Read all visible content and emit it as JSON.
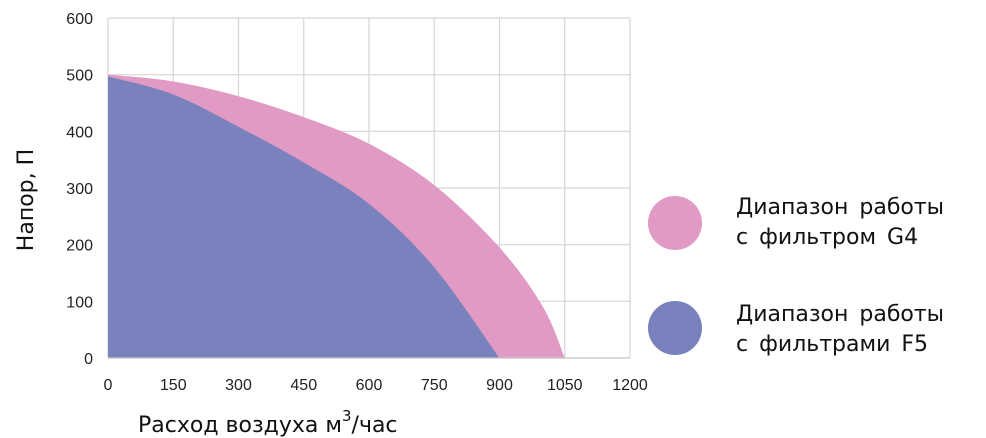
{
  "chart_data": {
    "type": "area",
    "xlabel": "Расход воздуха м",
    "xlabel_sup": "3",
    "xlabel_suffix": "/час",
    "ylabel": "Напор, П",
    "xlim": [
      0,
      1200
    ],
    "ylim": [
      0,
      600
    ],
    "x_ticks": [
      0,
      150,
      300,
      450,
      600,
      750,
      900,
      1050,
      1200
    ],
    "y_ticks": [
      0,
      100,
      200,
      300,
      400,
      500,
      600
    ],
    "grid": true,
    "legend_position": "right",
    "series": [
      {
        "name_line1": "Диапазон работы",
        "name_line2": "с фильтром G4",
        "color": "#e09ac3",
        "x": [
          0,
          150,
          300,
          450,
          600,
          750,
          900,
          1000,
          1050
        ],
        "y": [
          500,
          488,
          462,
          425,
          378,
          305,
          195,
          90,
          0
        ]
      },
      {
        "name_line1": "Диапазон работы",
        "name_line2": "с фильтрами F5",
        "color": "#7a82bd",
        "x": [
          0,
          150,
          300,
          450,
          600,
          750,
          900
        ],
        "y": [
          497,
          465,
          408,
          345,
          272,
          160,
          0
        ]
      }
    ]
  }
}
